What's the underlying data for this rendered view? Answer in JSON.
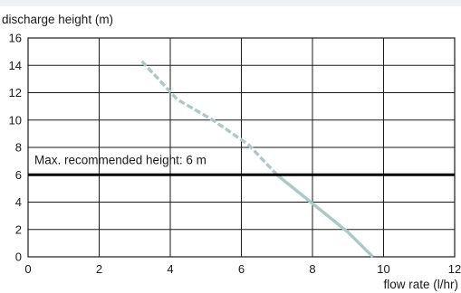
{
  "chart_data": {
    "type": "line",
    "ylabel": "discharge height (m)",
    "xlabel": "flow rate (l/hr)",
    "xlim": [
      0,
      12
    ],
    "ylim": [
      0,
      16
    ],
    "x_ticks": [
      0,
      2,
      4,
      6,
      8,
      10,
      12
    ],
    "y_ticks": [
      0,
      2,
      4,
      6,
      8,
      10,
      12,
      14,
      16
    ],
    "grid": true,
    "series": [
      {
        "style": "dashed",
        "color": "#a9cac6",
        "points": [
          [
            3.2,
            14.3
          ],
          [
            4.2,
            11.5
          ],
          [
            5.2,
            10.0
          ],
          [
            6.2,
            8.2
          ],
          [
            7.0,
            6.0
          ]
        ]
      },
      {
        "style": "solid",
        "color": "#a9cac6",
        "points": [
          [
            7.0,
            6.0
          ],
          [
            8.0,
            3.9
          ],
          [
            9.0,
            1.8
          ],
          [
            9.7,
            0.0
          ]
        ]
      }
    ],
    "reference_line": {
      "y": 6,
      "color": "#000000",
      "label": "Max. recommended height: 6 m"
    }
  }
}
